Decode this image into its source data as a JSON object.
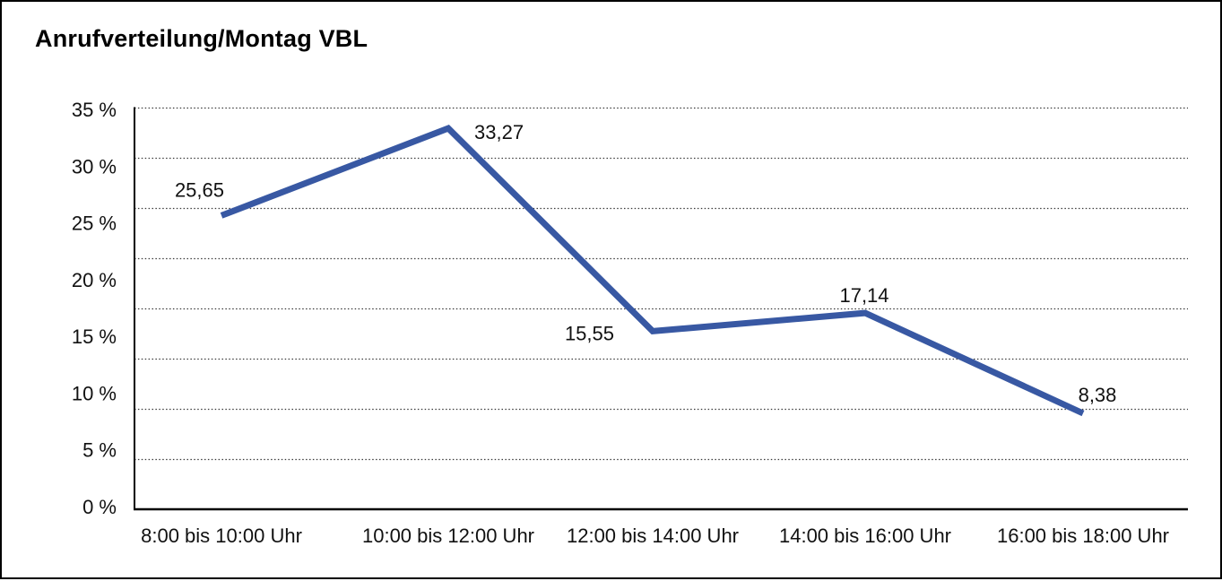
{
  "page": {
    "title": "Anrufverteilung/Montag VBL"
  },
  "chart_data": {
    "type": "line",
    "title": "Anrufverteilung/Montag VBL",
    "categories": [
      "8:00 bis 10:00 Uhr",
      "10:00 bis 12:00 Uhr",
      "12:00 bis 14:00 Uhr",
      "14:00 bis 16:00 Uhr",
      "16:00 bis 18:00 Uhr"
    ],
    "values": [
      25.65,
      33.27,
      15.55,
      17.14,
      8.38
    ],
    "value_labels": [
      "25,65",
      "33,27",
      "15,55",
      "17,14",
      "8,38"
    ],
    "y_tick_labels": [
      "35 %",
      "30 %",
      "25 %",
      "20 %",
      "15 %",
      "10 %",
      "5 %",
      "0 %"
    ],
    "ylim": [
      0,
      35
    ],
    "y_unit": "%",
    "y_tick_step": 5,
    "grid": "horizontal-dotted",
    "gridline_row_count": 8,
    "legend": "none",
    "line_color": "#3858A3",
    "axis_color": "#000000",
    "label_decimal_separator": ","
  }
}
